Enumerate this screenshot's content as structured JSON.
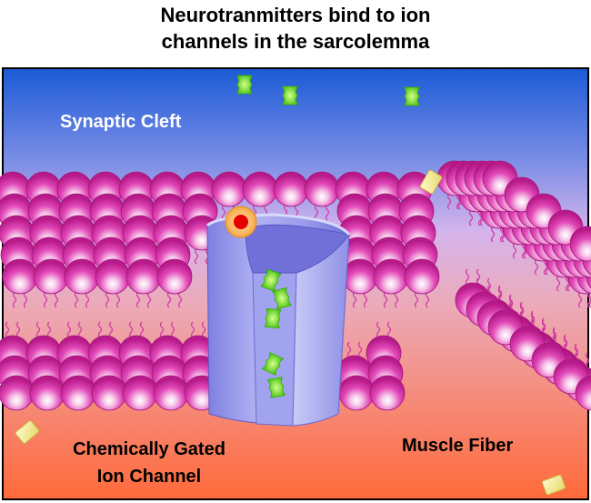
{
  "title": {
    "line1": "Neurotranmitters bind to ion",
    "line2": "channels in the sarcolemma"
  },
  "labels": {
    "synaptic_cleft": "Synaptic Cleft",
    "channel_line1": "Chemically Gated",
    "channel_line2": "Ion Channel",
    "muscle_fiber": "Muscle Fiber"
  },
  "colors": {
    "cleft_top": "#1a5fd8",
    "cleft_mid": "#c9a6e8",
    "fiber_bottom": "#ff6a3d",
    "phospholipid_head": "#e43fb4",
    "channel": "#8d8de8",
    "neurotransmitter": "#7ee321",
    "ion": "#f3ec9a",
    "receptor_site": "#e60000",
    "label_text": "#ffffff",
    "label_text_dark": "#000000"
  }
}
